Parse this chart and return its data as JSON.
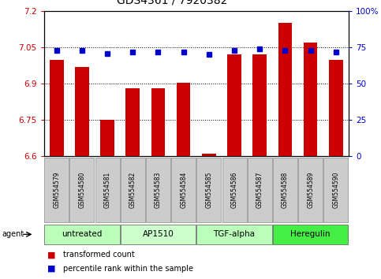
{
  "title": "GDS4361 / 7920382",
  "samples": [
    "GSM554579",
    "GSM554580",
    "GSM554581",
    "GSM554582",
    "GSM554583",
    "GSM554584",
    "GSM554585",
    "GSM554586",
    "GSM554587",
    "GSM554588",
    "GSM554589",
    "GSM554590"
  ],
  "bar_values": [
    7.0,
    6.97,
    6.75,
    6.88,
    6.88,
    6.905,
    6.61,
    7.02,
    7.02,
    7.15,
    7.07,
    7.0
  ],
  "percentile_values": [
    73,
    73,
    71,
    72,
    72,
    72,
    70,
    73,
    74,
    73,
    73,
    72
  ],
  "ymin": 6.6,
  "ymax": 7.2,
  "yticks_left": [
    6.6,
    6.75,
    6.9,
    7.05,
    7.2
  ],
  "yticks_right": [
    0,
    25,
    50,
    75,
    100
  ],
  "bar_color": "#cc0000",
  "dot_color": "#0000cc",
  "plot_bg": "#ffffff",
  "agent_groups": [
    {
      "label": "untreated",
      "start": 0,
      "end": 2,
      "color": "#bbffbb"
    },
    {
      "label": "AP1510",
      "start": 3,
      "end": 5,
      "color": "#ccffcc"
    },
    {
      "label": "TGF-alpha",
      "start": 6,
      "end": 8,
      "color": "#bbffbb"
    },
    {
      "label": "Heregulin",
      "start": 9,
      "end": 11,
      "color": "#44ee44"
    }
  ],
  "sample_box_color": "#cccccc",
  "legend_items": [
    {
      "label": "transformed count",
      "color": "#cc0000"
    },
    {
      "label": "percentile rank within the sample",
      "color": "#0000cc"
    }
  ],
  "title_fontsize": 10,
  "tick_fontsize": 7.5,
  "sample_fontsize": 5.5,
  "agent_fontsize": 7.5,
  "legend_fontsize": 7
}
